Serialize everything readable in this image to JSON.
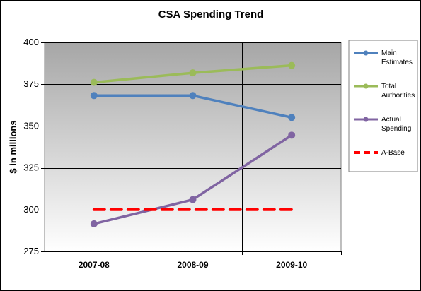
{
  "chart_data": {
    "type": "line",
    "title": "CSA Spending Trend",
    "xlabel": "",
    "ylabel": "$ in millions",
    "categories": [
      "2007-08",
      "2008-09",
      "2009-10"
    ],
    "ylim": [
      275,
      400
    ],
    "yticks": [
      275,
      300,
      325,
      350,
      375,
      400
    ],
    "grid": true,
    "legend_position": "right",
    "series": [
      {
        "name": "Main Estimates",
        "legend_lines": [
          "Main",
          "Estimates"
        ],
        "values": [
          368.2,
          368.2,
          355.1
        ],
        "color": "#4f81bd",
        "style": "solid",
        "markers": true
      },
      {
        "name": "Total Authorities",
        "legend_lines": [
          "Total",
          "Authorities"
        ],
        "values": [
          376.1,
          381.8,
          386.2
        ],
        "color": "#9bbb59",
        "style": "solid",
        "markers": true
      },
      {
        "name": "Actual Spending",
        "legend_lines": [
          "Actual",
          "Spending"
        ],
        "values": [
          291.5,
          306.0,
          344.5
        ],
        "color": "#8064a2",
        "style": "solid",
        "markers": true
      },
      {
        "name": "A-Base",
        "legend_lines": [
          "A-Base"
        ],
        "values": [
          300,
          300,
          300
        ],
        "color": "#ff0000",
        "style": "dashed",
        "markers": false
      }
    ]
  }
}
